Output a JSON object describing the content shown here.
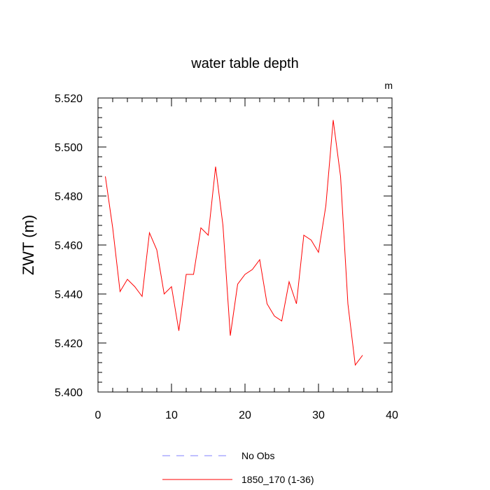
{
  "chart_data": {
    "type": "line",
    "title": "water table depth",
    "units_label": "m",
    "ylabel": "ZWT  (m)",
    "xlabel": "",
    "xlim": [
      0,
      40
    ],
    "ylim": [
      5.4,
      5.52
    ],
    "x_ticks": [
      0,
      10,
      20,
      30,
      40
    ],
    "x_tick_labels": [
      "0",
      "10",
      "20",
      "30",
      "40"
    ],
    "y_ticks": [
      5.4,
      5.42,
      5.44,
      5.46,
      5.48,
      5.5,
      5.52
    ],
    "y_tick_labels": [
      "5.400",
      "5.420",
      "5.440",
      "5.460",
      "5.480",
      "5.500",
      "5.520"
    ],
    "grid": false,
    "legend_position": "bottom",
    "legend": [
      {
        "label": "No Obs",
        "color": "#8080ff",
        "style": "dashed"
      },
      {
        "label": "1850_170 (1-36)",
        "color": "#ff0000",
        "style": "solid"
      }
    ],
    "series": [
      {
        "name": "1850_170 (1-36)",
        "color": "#ff0000",
        "x": [
          1,
          2,
          3,
          4,
          5,
          6,
          7,
          8,
          9,
          10,
          11,
          12,
          13,
          14,
          15,
          16,
          17,
          18,
          19,
          20,
          21,
          22,
          23,
          24,
          25,
          26,
          27,
          28,
          29,
          30,
          31,
          32,
          33,
          34,
          35,
          36
        ],
        "values": [
          5.488,
          5.467,
          5.441,
          5.446,
          5.443,
          5.439,
          5.465,
          5.458,
          5.44,
          5.443,
          5.425,
          5.448,
          5.448,
          5.467,
          5.464,
          5.492,
          5.468,
          5.423,
          5.444,
          5.448,
          5.45,
          5.454,
          5.436,
          5.431,
          5.429,
          5.445,
          5.436,
          5.464,
          5.462,
          5.457,
          5.476,
          5.511,
          5.488,
          5.436,
          5.411,
          5.415
        ]
      }
    ]
  }
}
